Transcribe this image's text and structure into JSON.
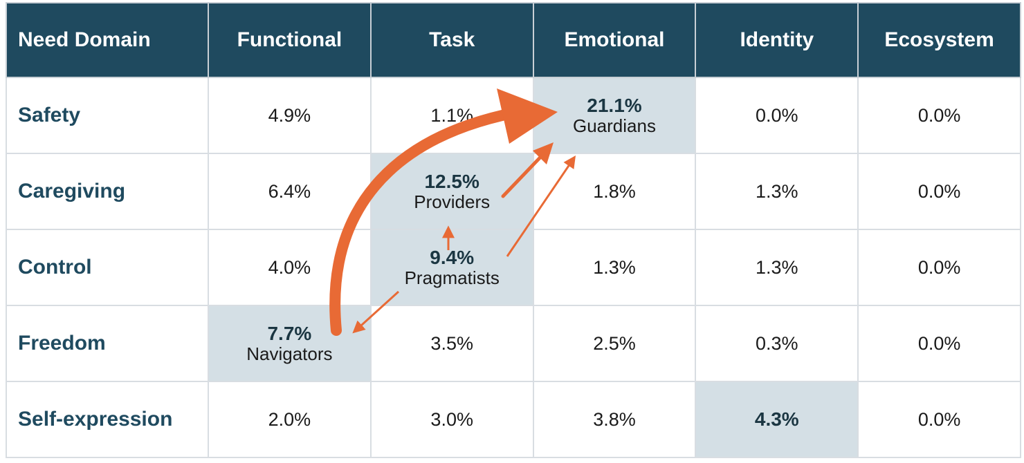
{
  "chart_data": {
    "type": "table",
    "columns": [
      "Need Domain",
      "Functional",
      "Task",
      "Emotional",
      "Identity",
      "Ecosystem"
    ],
    "rows": [
      {
        "label": "Safety",
        "values": [
          "4.9%",
          "1.1%",
          "21.1%",
          "0.0%",
          "0.0%"
        ]
      },
      {
        "label": "Caregiving",
        "values": [
          "6.4%",
          "12.5%",
          "1.8%",
          "1.3%",
          "0.0%"
        ]
      },
      {
        "label": "Control",
        "values": [
          "4.0%",
          "9.4%",
          "1.3%",
          "1.3%",
          "0.0%"
        ]
      },
      {
        "label": "Freedom",
        "values": [
          "7.7%",
          "3.5%",
          "2.5%",
          "0.3%",
          "0.0%"
        ]
      },
      {
        "label": "Self-expression",
        "values": [
          "2.0%",
          "3.0%",
          "3.8%",
          "4.3%",
          "0.0%"
        ]
      }
    ],
    "highlighted_cells": [
      {
        "row": "Safety",
        "column": "Emotional",
        "segment": "Guardians"
      },
      {
        "row": "Caregiving",
        "column": "Task",
        "segment": "Providers"
      },
      {
        "row": "Control",
        "column": "Task",
        "segment": "Pragmatists"
      },
      {
        "row": "Freedom",
        "column": "Functional",
        "segment": "Navigators"
      },
      {
        "row": "Self-expression",
        "column": "Identity",
        "segment": ""
      }
    ],
    "arrows": [
      {
        "from": "Navigators",
        "to": "Guardians",
        "weight": "thick"
      },
      {
        "from": "Providers",
        "to": "Guardians",
        "weight": "medium"
      },
      {
        "from": "Pragmatists",
        "to": "Guardians",
        "weight": "thin"
      },
      {
        "from": "Pragmatists",
        "to": "Providers",
        "weight": "thin"
      },
      {
        "from": "Pragmatists",
        "to": "Navigators",
        "weight": "thin"
      }
    ],
    "colors": {
      "header_bg": "#1f4a5f",
      "header_text": "#ffffff",
      "row_label": "#1f4a5f",
      "highlight_bg": "#d4dfe5",
      "arrow": "#e86a35",
      "grid_line": "#d8dde2"
    }
  }
}
